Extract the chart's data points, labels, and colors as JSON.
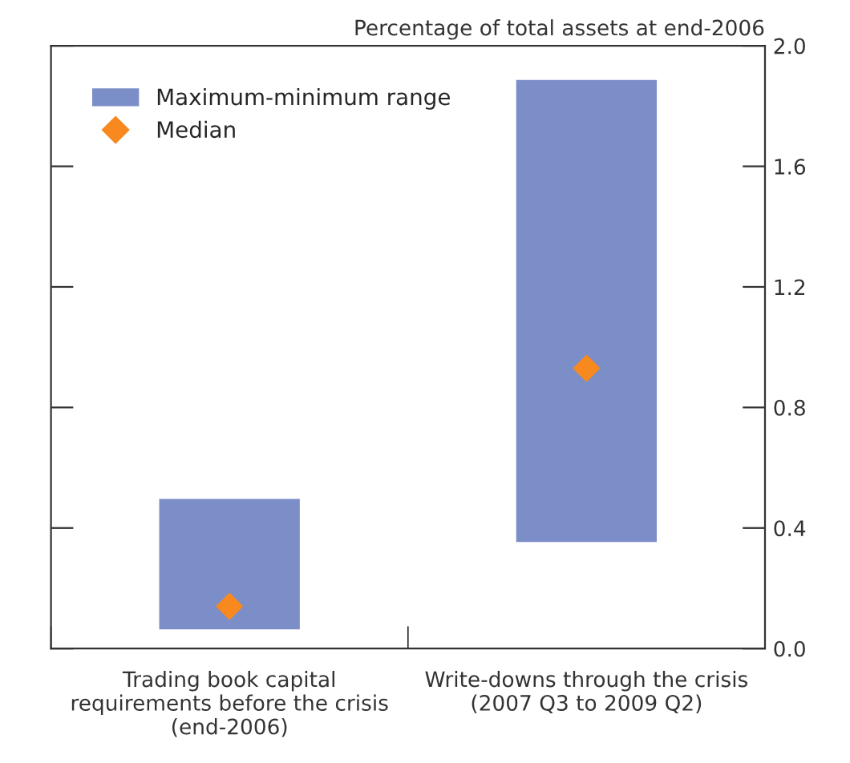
{
  "chart_data": {
    "type": "bar",
    "ylabel": "Percentage of total assets at end-2006",
    "categories": [
      "Trading book capital\nrequirements before the crisis\n(end-2006)",
      "Write-downs through the crisis\n(2007 Q3 to 2009 Q2)"
    ],
    "series": [
      {
        "name": "Maximum-minimum range",
        "color": "#7b8ec8",
        "type": "bar",
        "base": [
          0.06,
          0.35
        ],
        "values": [
          0.44,
          1.54
        ]
      },
      {
        "name": "Median",
        "color": "#f7891f",
        "type": "scatter",
        "marker": "diamond",
        "x": [
          "Trading book capital\nrequirements before the crisis\n(end-2006)",
          "Write-downs through the crisis\n(2007 Q3 to 2009 Q2)"
        ],
        "values": [
          0.14,
          0.93
        ]
      }
    ],
    "ylim": [
      0,
      2.0
    ],
    "yticks": [
      {
        "value": 0,
        "label": "0.0"
      },
      0.4,
      0.8,
      1.2,
      1.6,
      {
        "value": 2,
        "label": "2.0"
      }
    ],
    "legend": "top left",
    "grid": false
  }
}
